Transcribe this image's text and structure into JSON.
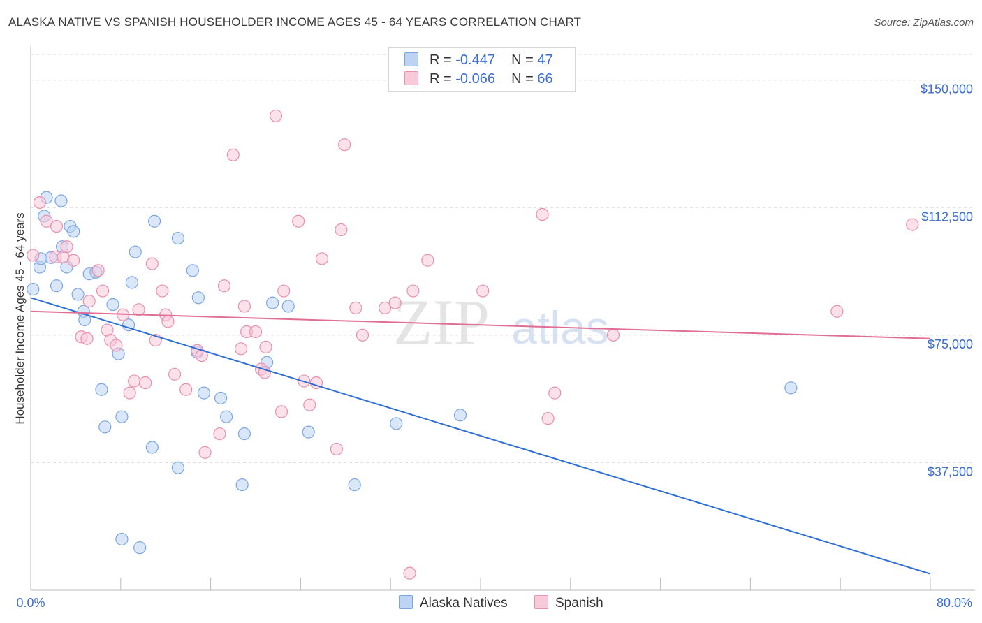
{
  "title": "ALASKA NATIVE VS SPANISH HOUSEHOLDER INCOME AGES 45 - 64 YEARS CORRELATION CHART",
  "source": "Source: ZipAtlas.com",
  "watermark": {
    "zip": "ZIP",
    "atlas": "atlas"
  },
  "legend_top": [
    {
      "r_label": "R =",
      "r_value": "-0.447",
      "n_label": "N =",
      "n_value": "47",
      "color": "#7aa6e6",
      "fill": "#bcd3f4"
    },
    {
      "r_label": "R =",
      "r_value": "-0.066",
      "n_label": "N =",
      "n_value": "66",
      "color": "#ea8fae",
      "fill": "#f7c9d9"
    }
  ],
  "chart_data": {
    "type": "scatter",
    "xlabel": "",
    "ylabel": "Householder Income Ages 45 - 64 years",
    "xlim": [
      0,
      80
    ],
    "ylim": [
      0,
      160000
    ],
    "x_tick_labels": [
      "0.0%",
      "80.0%"
    ],
    "y_ticks": [
      37500,
      75000,
      112500,
      150000
    ],
    "y_tick_labels": [
      "$37,500",
      "$75,000",
      "$112,500",
      "$150,000"
    ],
    "grid": "horizontal dashed",
    "legend_position": "bottom-center",
    "series": [
      {
        "name": "Alaska Natives",
        "color": "#7aa6e6",
        "fill": "#bcd3f4",
        "line_color": "#2f6fd6",
        "trend": {
          "x": [
            0,
            80
          ],
          "y": [
            86000,
            4800
          ]
        },
        "points": [
          [
            0.2,
            88500
          ],
          [
            0.8,
            95000
          ],
          [
            0.9,
            97500
          ],
          [
            1.4,
            115500
          ],
          [
            1.2,
            110000
          ],
          [
            1.8,
            97800
          ],
          [
            2.3,
            89500
          ],
          [
            2.7,
            114500
          ],
          [
            2.8,
            101000
          ],
          [
            3.2,
            95000
          ],
          [
            3.5,
            107000
          ],
          [
            3.8,
            105500
          ],
          [
            4.2,
            87000
          ],
          [
            4.7,
            82000
          ],
          [
            4.8,
            79500
          ],
          [
            5.2,
            93000
          ],
          [
            5.8,
            93500
          ],
          [
            6.3,
            59000
          ],
          [
            6.6,
            48000
          ],
          [
            7.3,
            84000
          ],
          [
            7.8,
            69500
          ],
          [
            8.1,
            51000
          ],
          [
            8.7,
            78000
          ],
          [
            9.0,
            90500
          ],
          [
            9.3,
            99500
          ],
          [
            10.8,
            42000
          ],
          [
            11.0,
            108500
          ],
          [
            13.1,
            103500
          ],
          [
            13.1,
            36000
          ],
          [
            14.4,
            94000
          ],
          [
            14.8,
            70000
          ],
          [
            14.9,
            86000
          ],
          [
            15.4,
            58000
          ],
          [
            16.9,
            56500
          ],
          [
            17.4,
            51000
          ],
          [
            18.8,
            31000
          ],
          [
            19.0,
            46000
          ],
          [
            21.0,
            67000
          ],
          [
            21.5,
            84500
          ],
          [
            22.9,
            83500
          ],
          [
            24.7,
            46500
          ],
          [
            28.8,
            31000
          ],
          [
            32.5,
            49000
          ],
          [
            38.2,
            51500
          ],
          [
            67.6,
            59500
          ],
          [
            8.1,
            15000
          ],
          [
            9.7,
            12500
          ]
        ]
      },
      {
        "name": "Spanish",
        "color": "#ea8fae",
        "fill": "#f7c9d9",
        "line_color": "#e06d94",
        "trend": {
          "x": [
            0,
            80
          ],
          "y": [
            82000,
            74000
          ]
        },
        "points": [
          [
            0.2,
            98500
          ],
          [
            0.8,
            114000
          ],
          [
            1.4,
            108500
          ],
          [
            2.2,
            98000
          ],
          [
            2.3,
            107000
          ],
          [
            2.9,
            98000
          ],
          [
            3.2,
            101000
          ],
          [
            3.8,
            97000
          ],
          [
            4.5,
            74500
          ],
          [
            5.0,
            74000
          ],
          [
            5.2,
            85000
          ],
          [
            6.0,
            94000
          ],
          [
            6.4,
            88000
          ],
          [
            6.8,
            76500
          ],
          [
            7.1,
            73500
          ],
          [
            7.6,
            72000
          ],
          [
            8.2,
            81000
          ],
          [
            8.8,
            58000
          ],
          [
            9.2,
            61500
          ],
          [
            9.6,
            82500
          ],
          [
            10.2,
            61000
          ],
          [
            10.8,
            96000
          ],
          [
            11.1,
            73500
          ],
          [
            11.7,
            88000
          ],
          [
            12.0,
            81000
          ],
          [
            12.2,
            79000
          ],
          [
            12.8,
            63500
          ],
          [
            13.8,
            59000
          ],
          [
            14.8,
            70500
          ],
          [
            15.2,
            69000
          ],
          [
            15.5,
            40500
          ],
          [
            16.8,
            46000
          ],
          [
            17.2,
            89500
          ],
          [
            18.7,
            71000
          ],
          [
            19.0,
            83500
          ],
          [
            19.2,
            76000
          ],
          [
            20.0,
            76000
          ],
          [
            20.5,
            65000
          ],
          [
            20.8,
            64000
          ],
          [
            20.9,
            71500
          ],
          [
            21.8,
            139500
          ],
          [
            22.3,
            52500
          ],
          [
            22.5,
            88000
          ],
          [
            23.8,
            108500
          ],
          [
            24.3,
            61500
          ],
          [
            24.8,
            54500
          ],
          [
            25.4,
            61000
          ],
          [
            25.9,
            97500
          ],
          [
            27.2,
            41500
          ],
          [
            27.6,
            106000
          ],
          [
            27.9,
            131000
          ],
          [
            28.9,
            83000
          ],
          [
            29.5,
            75000
          ],
          [
            31.5,
            83000
          ],
          [
            32.4,
            84500
          ],
          [
            34.0,
            88000
          ],
          [
            35.3,
            97000
          ],
          [
            40.2,
            88000
          ],
          [
            45.5,
            110500
          ],
          [
            46.0,
            50500
          ],
          [
            46.6,
            58000
          ],
          [
            51.8,
            75000
          ],
          [
            71.7,
            82000
          ],
          [
            78.4,
            107500
          ],
          [
            18.0,
            128000
          ],
          [
            33.7,
            5000
          ]
        ]
      }
    ]
  }
}
